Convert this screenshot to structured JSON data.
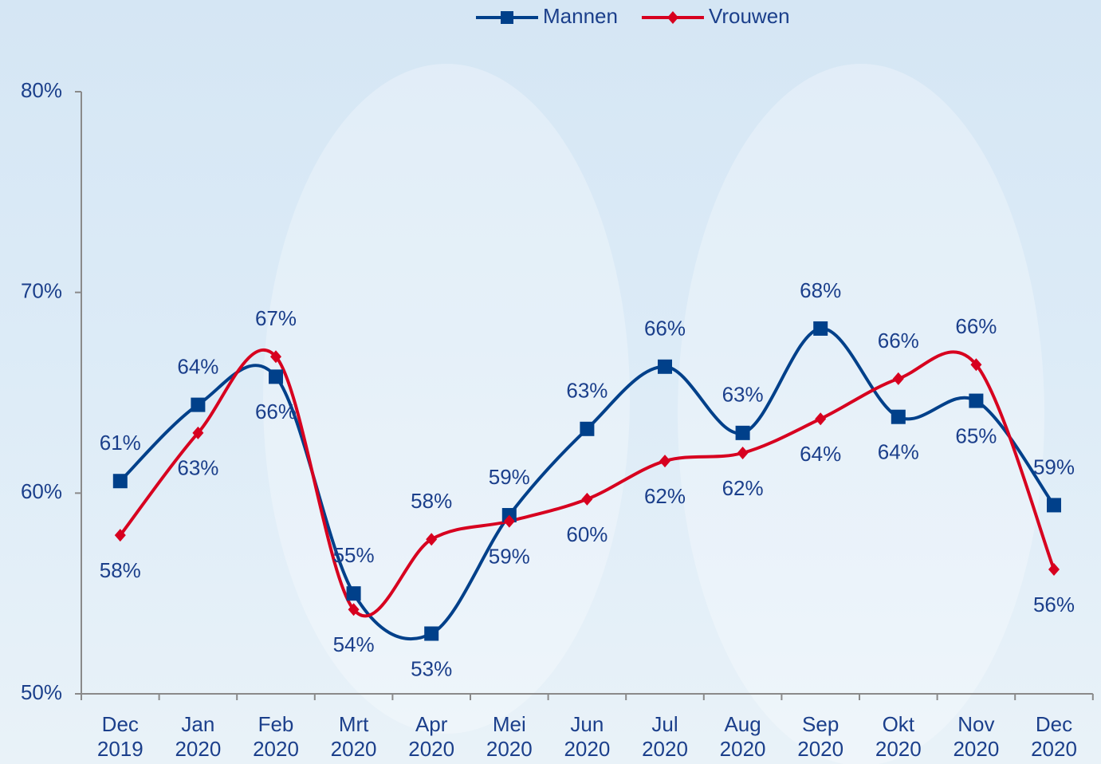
{
  "chart_data": {
    "type": "line",
    "categories": [
      "Dec\n2019",
      "Jan\n2020",
      "Feb\n2020",
      "Mrt\n2020",
      "Apr\n2020",
      "Mei\n2020",
      "Jun\n2020",
      "Jul\n2020",
      "Aug\n2020",
      "Sep\n2020",
      "Okt\n2020",
      "Nov\n2020",
      "Dec\n2020"
    ],
    "series": [
      {
        "name": "Mannen",
        "color": "#00408a",
        "marker": "square",
        "values": [
          60.6,
          64.4,
          65.8,
          55.0,
          53.0,
          58.9,
          63.2,
          66.3,
          63.0,
          68.2,
          63.8,
          64.6,
          59.4
        ],
        "value_labels": [
          "61%",
          "64%",
          "66%",
          "55%",
          "53%",
          "59%",
          "63%",
          "66%",
          "63%",
          "68%",
          "64%",
          "65%",
          "59%"
        ]
      },
      {
        "name": "Vrouwen",
        "color": "#d7001f",
        "marker": "diamond",
        "values": [
          57.9,
          63.0,
          66.8,
          54.2,
          57.7,
          58.6,
          59.7,
          61.6,
          62.0,
          63.7,
          65.7,
          66.4,
          56.2
        ],
        "value_labels": [
          "58%",
          "63%",
          "67%",
          "54%",
          "58%",
          "59%",
          "60%",
          "62%",
          "62%",
          "64%",
          "66%",
          "66%",
          "56%"
        ]
      }
    ],
    "ylim": [
      50,
      80
    ],
    "yticks": [
      {
        "value": 50,
        "label": "50%"
      },
      {
        "value": 60,
        "label": "60%"
      },
      {
        "value": 70,
        "label": "70%"
      },
      {
        "value": 80,
        "label": "80%"
      }
    ],
    "legend": "top",
    "smooth": true
  }
}
